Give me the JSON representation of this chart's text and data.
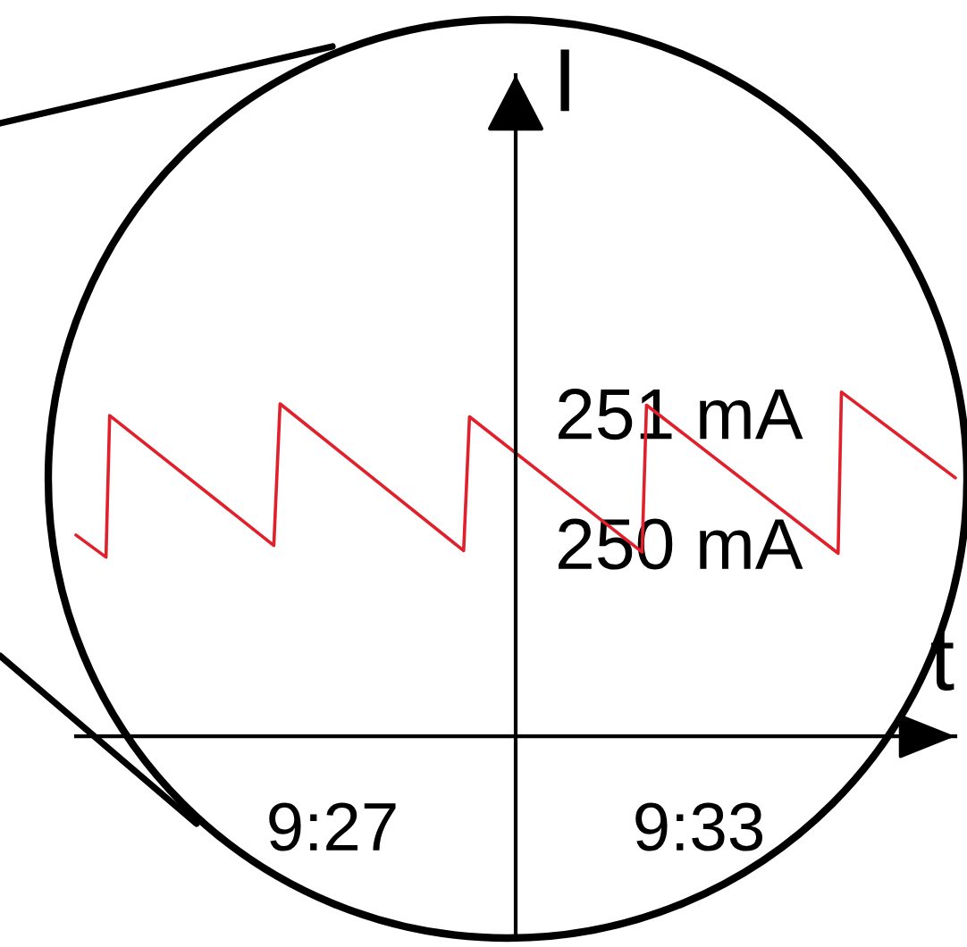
{
  "chart_data": {
    "type": "line",
    "xlabel": "t",
    "ylabel": "I",
    "x": [
      9.38,
      9.3882,
      9.3892,
      9.434,
      9.4357,
      9.4858,
      9.4874,
      9.5345,
      9.5357,
      9.588,
      9.5889,
      9.62
    ],
    "series": [
      {
        "color": "#e0202a",
        "values": [
          250.06,
          249.89,
          250.98,
          249.98,
          251.07,
          249.94,
          250.97,
          249.93,
          251.06,
          249.92,
          251.16,
          250.5
        ]
      }
    ],
    "xlim": [
      9.38,
      9.62
    ],
    "xticks": [
      {
        "value": 9.45,
        "label": "9:27"
      },
      {
        "value": 9.55,
        "label": "9:33"
      }
    ],
    "ylim": [
      247,
      253.6
    ],
    "yticks": [
      {
        "value": 250,
        "label": "250 mA"
      },
      {
        "value": 251,
        "label": "251 mA"
      }
    ],
    "line_style": "solid"
  }
}
